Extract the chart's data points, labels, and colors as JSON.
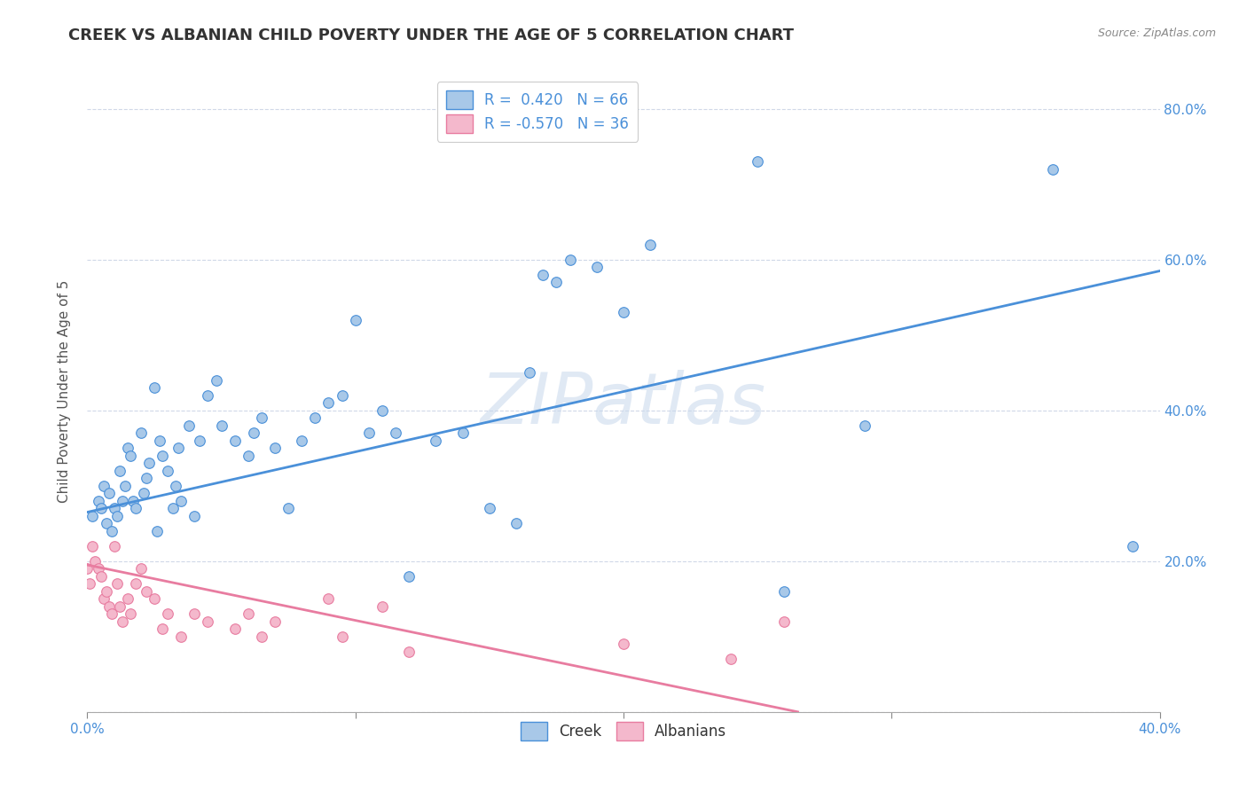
{
  "title": "CREEK VS ALBANIAN CHILD POVERTY UNDER THE AGE OF 5 CORRELATION CHART",
  "source": "Source: ZipAtlas.com",
  "ylabel": "Child Poverty Under the Age of 5",
  "xlim": [
    0.0,
    0.4
  ],
  "ylim": [
    0.0,
    0.85
  ],
  "yticks": [
    0.0,
    0.2,
    0.4,
    0.6,
    0.8
  ],
  "ytick_labels_right": [
    "",
    "20.0%",
    "40.0%",
    "60.0%",
    "80.0%"
  ],
  "creek_color": "#a8c8e8",
  "albanian_color": "#f4b8cc",
  "creek_line_color": "#4a90d9",
  "albanian_line_color": "#e87ca0",
  "legend_r_creek": "R =  0.420",
  "legend_n_creek": "N = 66",
  "legend_r_albanian": "R = -0.570",
  "legend_n_albanian": "N = 36",
  "watermark": "ZIPatlas",
  "creek_scatter": [
    [
      0.002,
      0.26
    ],
    [
      0.004,
      0.28
    ],
    [
      0.005,
      0.27
    ],
    [
      0.006,
      0.3
    ],
    [
      0.007,
      0.25
    ],
    [
      0.008,
      0.29
    ],
    [
      0.009,
      0.24
    ],
    [
      0.01,
      0.27
    ],
    [
      0.011,
      0.26
    ],
    [
      0.012,
      0.32
    ],
    [
      0.013,
      0.28
    ],
    [
      0.014,
      0.3
    ],
    [
      0.015,
      0.35
    ],
    [
      0.016,
      0.34
    ],
    [
      0.017,
      0.28
    ],
    [
      0.018,
      0.27
    ],
    [
      0.02,
      0.37
    ],
    [
      0.021,
      0.29
    ],
    [
      0.022,
      0.31
    ],
    [
      0.023,
      0.33
    ],
    [
      0.025,
      0.43
    ],
    [
      0.026,
      0.24
    ],
    [
      0.027,
      0.36
    ],
    [
      0.028,
      0.34
    ],
    [
      0.03,
      0.32
    ],
    [
      0.032,
      0.27
    ],
    [
      0.033,
      0.3
    ],
    [
      0.034,
      0.35
    ],
    [
      0.035,
      0.28
    ],
    [
      0.038,
      0.38
    ],
    [
      0.04,
      0.26
    ],
    [
      0.042,
      0.36
    ],
    [
      0.045,
      0.42
    ],
    [
      0.048,
      0.44
    ],
    [
      0.05,
      0.38
    ],
    [
      0.055,
      0.36
    ],
    [
      0.06,
      0.34
    ],
    [
      0.062,
      0.37
    ],
    [
      0.065,
      0.39
    ],
    [
      0.07,
      0.35
    ],
    [
      0.075,
      0.27
    ],
    [
      0.08,
      0.36
    ],
    [
      0.085,
      0.39
    ],
    [
      0.09,
      0.41
    ],
    [
      0.095,
      0.42
    ],
    [
      0.1,
      0.52
    ],
    [
      0.105,
      0.37
    ],
    [
      0.11,
      0.4
    ],
    [
      0.115,
      0.37
    ],
    [
      0.12,
      0.18
    ],
    [
      0.13,
      0.36
    ],
    [
      0.14,
      0.37
    ],
    [
      0.15,
      0.27
    ],
    [
      0.16,
      0.25
    ],
    [
      0.165,
      0.45
    ],
    [
      0.17,
      0.58
    ],
    [
      0.175,
      0.57
    ],
    [
      0.18,
      0.6
    ],
    [
      0.19,
      0.59
    ],
    [
      0.2,
      0.53
    ],
    [
      0.21,
      0.62
    ],
    [
      0.25,
      0.73
    ],
    [
      0.26,
      0.16
    ],
    [
      0.29,
      0.38
    ],
    [
      0.36,
      0.72
    ],
    [
      0.39,
      0.22
    ]
  ],
  "albanian_scatter": [
    [
      0.0,
      0.19
    ],
    [
      0.001,
      0.17
    ],
    [
      0.002,
      0.22
    ],
    [
      0.003,
      0.2
    ],
    [
      0.004,
      0.19
    ],
    [
      0.005,
      0.18
    ],
    [
      0.006,
      0.15
    ],
    [
      0.007,
      0.16
    ],
    [
      0.008,
      0.14
    ],
    [
      0.009,
      0.13
    ],
    [
      0.01,
      0.22
    ],
    [
      0.011,
      0.17
    ],
    [
      0.012,
      0.14
    ],
    [
      0.013,
      0.12
    ],
    [
      0.015,
      0.15
    ],
    [
      0.016,
      0.13
    ],
    [
      0.018,
      0.17
    ],
    [
      0.02,
      0.19
    ],
    [
      0.022,
      0.16
    ],
    [
      0.025,
      0.15
    ],
    [
      0.028,
      0.11
    ],
    [
      0.03,
      0.13
    ],
    [
      0.035,
      0.1
    ],
    [
      0.04,
      0.13
    ],
    [
      0.045,
      0.12
    ],
    [
      0.055,
      0.11
    ],
    [
      0.06,
      0.13
    ],
    [
      0.065,
      0.1
    ],
    [
      0.07,
      0.12
    ],
    [
      0.09,
      0.15
    ],
    [
      0.095,
      0.1
    ],
    [
      0.11,
      0.14
    ],
    [
      0.12,
      0.08
    ],
    [
      0.2,
      0.09
    ],
    [
      0.24,
      0.07
    ],
    [
      0.26,
      0.12
    ]
  ],
  "creek_line_x": [
    0.0,
    0.4
  ],
  "creek_line_y": [
    0.265,
    0.585
  ],
  "albanian_line_x": [
    0.0,
    0.265
  ],
  "albanian_line_y": [
    0.195,
    0.0
  ],
  "background_color": "#ffffff",
  "grid_color": "#d0d8e8",
  "title_fontsize": 13,
  "label_fontsize": 11,
  "tick_fontsize": 11,
  "legend_fontsize": 12
}
